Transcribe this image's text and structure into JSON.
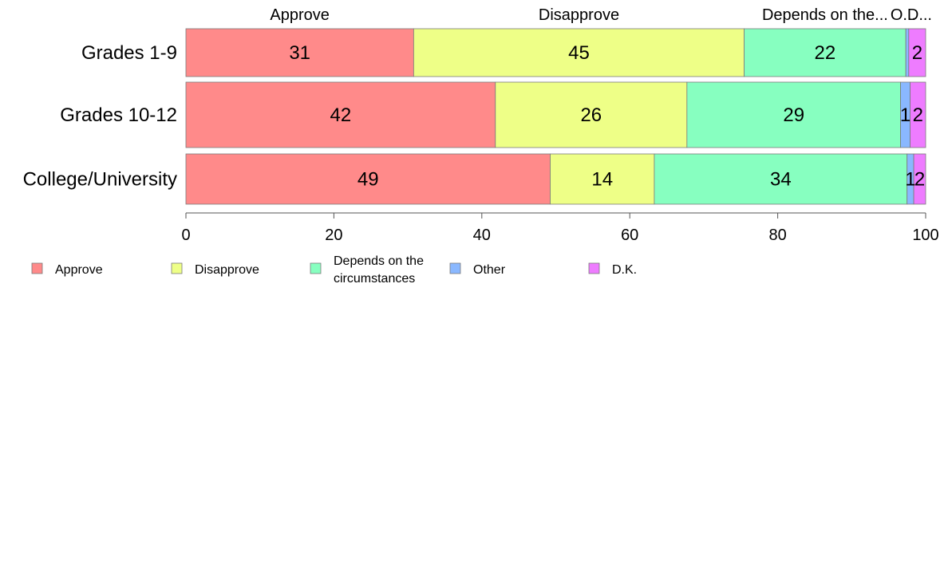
{
  "chart_data": {
    "type": "bar",
    "orientation": "horizontal",
    "stacked": true,
    "categories": [
      "Grades 1-9",
      "Grades 10-12",
      "College/University"
    ],
    "series": [
      {
        "name": "Approve",
        "values": [
          31,
          42,
          49
        ],
        "color": "#ff8a8a"
      },
      {
        "name": "Disapprove",
        "values": [
          45,
          26,
          14
        ],
        "color": "#eeff87"
      },
      {
        "name": "Depends on the circumstances",
        "values": [
          22,
          29,
          34
        ],
        "color": "#87ffc0"
      },
      {
        "name": "Other",
        "values": [
          0.4,
          1.3,
          0.9
        ],
        "color": "#8ab8ff"
      },
      {
        "name": "D.K.",
        "values": [
          2.3,
          2.1,
          1.6
        ],
        "color": "#ee7cff"
      }
    ],
    "segment_labels": [
      [
        "31",
        "45",
        "22",
        "",
        "2"
      ],
      [
        "42",
        "26",
        "29",
        "1",
        "2"
      ],
      [
        "49",
        "14",
        "34",
        "1",
        "2"
      ]
    ],
    "top_labels": [
      "Approve",
      "Disapprove",
      "Depends on the...",
      "O...",
      "D..."
    ],
    "legend": [
      {
        "lines": [
          "Approve"
        ]
      },
      {
        "lines": [
          "Disapprove"
        ]
      },
      {
        "lines": [
          "Depends on the",
          "circumstances"
        ]
      },
      {
        "lines": [
          "Other"
        ]
      },
      {
        "lines": [
          "D.K."
        ]
      }
    ],
    "x_ticks": [
      "0",
      "20",
      "40",
      "60",
      "80",
      "100"
    ],
    "xlim": [
      0,
      100
    ],
    "grid": false,
    "legend_position": "bottom"
  }
}
